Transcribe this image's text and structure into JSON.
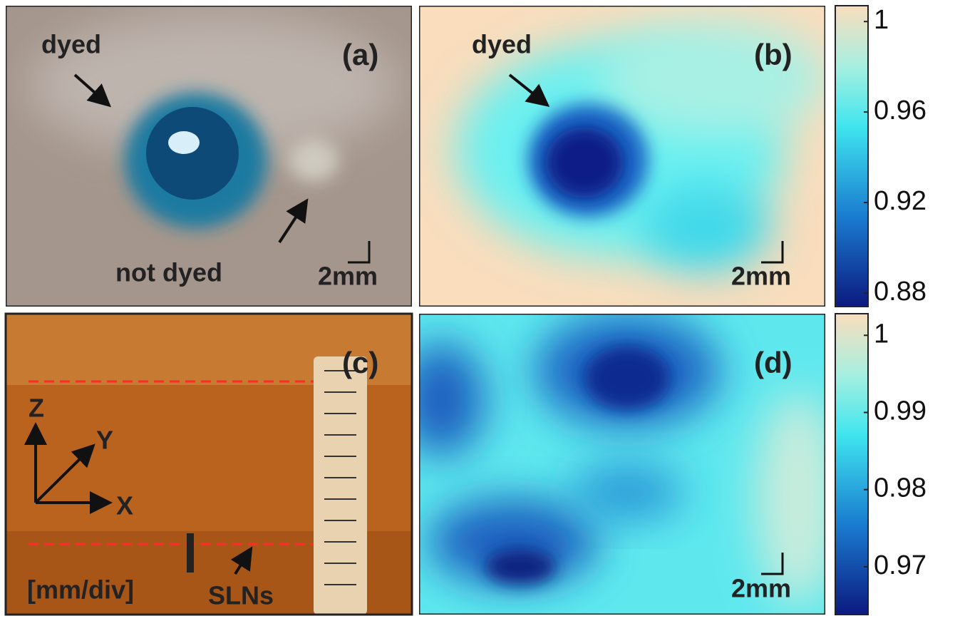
{
  "panels": [
    {
      "label": "(a)",
      "annotations": [
        "dyed",
        "not dyed"
      ],
      "scale_bar": "2mm"
    },
    {
      "label": "(b)",
      "annotations": [
        "dyed"
      ],
      "scale_bar": "2mm"
    },
    {
      "label": "(c)",
      "annotations": [
        "Z",
        "Y",
        "X",
        "[mm/div]",
        "SLNs"
      ]
    },
    {
      "label": "(d)",
      "scale_bar": "2mm"
    }
  ],
  "colorbars": [
    {
      "lim": [
        0.874,
        1.007
      ],
      "ticks": [
        1,
        0.96,
        0.92,
        0.88
      ]
    },
    {
      "lim": [
        0.9638,
        1.0028
      ],
      "ticks": [
        1,
        0.99,
        0.98,
        0.97
      ]
    }
  ]
}
